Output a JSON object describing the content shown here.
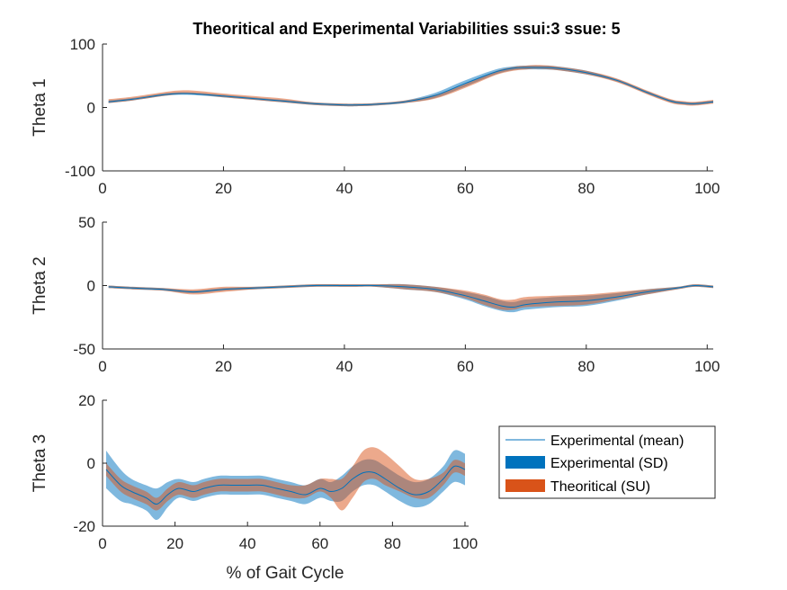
{
  "title": "Theoritical and Experimental Variabilities ssui:3 ssue: 5",
  "xlabel": "% of Gait Cycle",
  "colors": {
    "experimental_band": "#0072BD",
    "theoretical_band": "#D95319",
    "mean_line": "#0072BD",
    "axis": "#262626"
  },
  "legend": {
    "mean": "Experimental (mean)",
    "sd": "Experimental (SD)",
    "su": "Theoritical (SU)"
  },
  "chart_data": [
    {
      "type": "area",
      "ylabel": "Theta 1",
      "xlim": [
        0,
        101
      ],
      "ylim": [
        -100,
        100
      ],
      "xticks": [
        0,
        20,
        40,
        60,
        80,
        100
      ],
      "yticks": [
        -100,
        0,
        100
      ],
      "x": [
        1,
        5,
        10,
        13,
        16,
        20,
        25,
        30,
        35,
        40,
        42,
        45,
        50,
        55,
        60,
        65,
        68,
        70,
        72,
        75,
        80,
        85,
        90,
        94,
        96,
        98,
        101
      ],
      "mean": [
        9,
        13,
        20,
        22,
        21,
        18,
        14,
        10,
        6,
        4,
        4,
        5,
        9,
        19,
        38,
        56,
        62,
        63,
        63,
        62,
        55,
        43,
        24,
        10,
        7,
        6,
        9
      ],
      "sd": [
        2,
        2,
        2,
        2,
        2,
        2,
        2,
        2,
        2,
        2,
        2,
        2,
        2,
        4,
        5,
        4,
        3,
        3,
        3,
        3,
        3,
        2,
        2,
        2,
        2,
        2,
        2
      ],
      "theo_mean": [
        10,
        14,
        21,
        24,
        23,
        19,
        15,
        11,
        6,
        4,
        4,
        5,
        9,
        17,
        34,
        54,
        61,
        63,
        64,
        62,
        55,
        43,
        24,
        10,
        7,
        6,
        9
      ],
      "su": [
        3,
        3,
        3,
        3,
        3,
        3,
        3,
        3,
        2,
        2,
        2,
        2,
        2,
        3,
        3,
        3,
        3,
        3,
        3,
        3,
        3,
        3,
        3,
        3,
        3,
        3,
        3
      ]
    },
    {
      "type": "area",
      "ylabel": "Theta 2",
      "xlim": [
        0,
        101
      ],
      "ylim": [
        -50,
        50
      ],
      "xticks": [
        0,
        20,
        40,
        60,
        80,
        100
      ],
      "yticks": [
        -50,
        0,
        50
      ],
      "x": [
        1,
        5,
        10,
        15,
        20,
        25,
        30,
        35,
        40,
        42,
        45,
        50,
        55,
        60,
        63,
        66,
        68,
        70,
        75,
        80,
        85,
        90,
        95,
        98,
        101
      ],
      "mean": [
        -1,
        -2,
        -3,
        -5,
        -3,
        -2,
        -1,
        0,
        0,
        0,
        0,
        -1,
        -3,
        -8,
        -12,
        -16,
        -17,
        -15,
        -13,
        -12,
        -9,
        -5,
        -2,
        0,
        -1
      ],
      "sd": [
        1,
        1,
        1,
        1,
        1,
        1,
        1,
        1,
        1,
        1,
        1,
        2,
        2,
        3,
        4,
        4,
        4,
        4,
        4,
        4,
        3,
        2,
        1,
        1,
        1
      ],
      "theo_mean": [
        -1,
        -2,
        -3,
        -5,
        -3,
        -2,
        -1,
        0,
        0,
        0,
        0,
        -1,
        -3,
        -7,
        -11,
        -15,
        -15,
        -13,
        -12,
        -11,
        -8,
        -5,
        -2,
        0,
        -1
      ],
      "su": [
        1,
        1,
        1,
        2,
        2,
        1,
        1,
        1,
        1,
        1,
        1,
        2,
        2,
        3,
        4,
        4,
        4,
        4,
        4,
        4,
        3,
        2,
        1,
        1,
        1
      ]
    },
    {
      "type": "area",
      "ylabel": "Theta 3",
      "xlim": [
        0,
        101
      ],
      "ylim": [
        -20,
        20
      ],
      "xticks": [
        0,
        20,
        40,
        60,
        80,
        100
      ],
      "yticks": [
        -20,
        0,
        20
      ],
      "x": [
        1,
        5,
        8,
        12,
        15,
        18,
        21,
        25,
        28,
        32,
        36,
        40,
        44,
        48,
        52,
        56,
        60,
        63,
        66,
        69,
        72,
        75,
        78,
        82,
        86,
        90,
        94,
        97,
        100
      ],
      "mean": [
        -2,
        -7,
        -9,
        -11,
        -13,
        -10,
        -8,
        -9,
        -8,
        -7,
        -7,
        -7,
        -7,
        -8,
        -9,
        -10,
        -8,
        -9,
        -8,
        -5,
        -3,
        -3,
        -5,
        -8,
        -10,
        -9,
        -5,
        -1,
        -2
      ],
      "sd": [
        6,
        5,
        4,
        4,
        5,
        4,
        3,
        3,
        3,
        3,
        3,
        3,
        3,
        3,
        3,
        3,
        3,
        3,
        4,
        4,
        4,
        4,
        4,
        4,
        4,
        4,
        4,
        5,
        5
      ],
      "theo_mean": [
        -2,
        -7,
        -9,
        -11,
        -13,
        -10,
        -8,
        -9,
        -8,
        -7,
        -7,
        -7,
        -7,
        -8,
        -9,
        -9,
        -7,
        -8,
        -10,
        -6,
        -1,
        0,
        -2,
        -5,
        -8,
        -8,
        -5,
        -1,
        -2
      ],
      "su": [
        2,
        2,
        2,
        2,
        2,
        2,
        2,
        2,
        2,
        2,
        2,
        2,
        2,
        2,
        2,
        2,
        2,
        3,
        5,
        5,
        5,
        5,
        5,
        4,
        3,
        3,
        2,
        2,
        2
      ]
    }
  ]
}
